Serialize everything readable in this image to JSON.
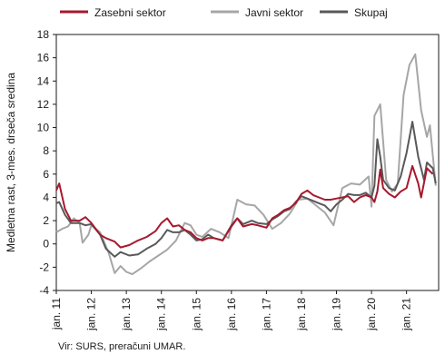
{
  "chart_data": {
    "type": "line",
    "ylabel": "Medletna rast, 3-mes. drseča sredina",
    "ylim": [
      -4,
      18
    ],
    "yticks": [
      -4,
      -2,
      0,
      2,
      4,
      6,
      8,
      10,
      12,
      14,
      16,
      18
    ],
    "xlim": [
      "2011-01",
      "2021-12"
    ],
    "xticks": [
      {
        "label": "jan. 11",
        "at": "2011-01"
      },
      {
        "label": "jan. 12",
        "at": "2012-01"
      },
      {
        "label": "jan. 13",
        "at": "2013-01"
      },
      {
        "label": "jan. 14",
        "at": "2014-01"
      },
      {
        "label": "jan. 15",
        "at": "2015-01"
      },
      {
        "label": "jan. 16",
        "at": "2016-01"
      },
      {
        "label": "jan. 17",
        "at": "2017-01"
      },
      {
        "label": "jan. 18",
        "at": "2018-01"
      },
      {
        "label": "jan. 19",
        "at": "2019-01"
      },
      {
        "label": "jan. 20",
        "at": "2020-01"
      },
      {
        "label": "jan. 21",
        "at": "2021-01"
      }
    ],
    "grid": false,
    "legend_position": "top",
    "series": [
      {
        "name": "Zasebni sektor",
        "color": "#a6192e",
        "points": [
          [
            "2011-01",
            4.6
          ],
          [
            "2011-02",
            5.2
          ],
          [
            "2011-04",
            3.0
          ],
          [
            "2011-06",
            2.0
          ],
          [
            "2011-09",
            2.0
          ],
          [
            "2011-11",
            2.3
          ],
          [
            "2012-01",
            1.8
          ],
          [
            "2012-04",
            0.8
          ],
          [
            "2012-06",
            0.5
          ],
          [
            "2012-09",
            0.2
          ],
          [
            "2012-11",
            -0.3
          ],
          [
            "2013-02",
            -0.1
          ],
          [
            "2013-05",
            0.3
          ],
          [
            "2013-08",
            0.6
          ],
          [
            "2013-11",
            1.1
          ],
          [
            "2014-01",
            1.8
          ],
          [
            "2014-03",
            2.2
          ],
          [
            "2014-05",
            1.5
          ],
          [
            "2014-07",
            1.6
          ],
          [
            "2014-09",
            1.2
          ],
          [
            "2014-11",
            1.0
          ],
          [
            "2015-01",
            0.5
          ],
          [
            "2015-03",
            0.3
          ],
          [
            "2015-05",
            0.5
          ],
          [
            "2015-07",
            0.5
          ],
          [
            "2015-10",
            0.3
          ],
          [
            "2016-01",
            1.5
          ],
          [
            "2016-03",
            2.2
          ],
          [
            "2016-05",
            1.5
          ],
          [
            "2016-08",
            1.7
          ],
          [
            "2016-10",
            1.6
          ],
          [
            "2017-01",
            1.4
          ],
          [
            "2017-03",
            2.2
          ],
          [
            "2017-05",
            2.5
          ],
          [
            "2017-07",
            2.9
          ],
          [
            "2017-09",
            3.1
          ],
          [
            "2017-11",
            3.5
          ],
          [
            "2018-01",
            4.3
          ],
          [
            "2018-03",
            4.6
          ],
          [
            "2018-05",
            4.2
          ],
          [
            "2018-07",
            4.0
          ],
          [
            "2018-09",
            3.8
          ],
          [
            "2018-11",
            3.8
          ],
          [
            "2019-01",
            3.9
          ],
          [
            "2019-03",
            4.0
          ],
          [
            "2019-05",
            4.1
          ],
          [
            "2019-07",
            3.6
          ],
          [
            "2019-09",
            4.0
          ],
          [
            "2019-11",
            4.2
          ],
          [
            "2020-01",
            4.0
          ],
          [
            "2020-02",
            3.6
          ],
          [
            "2020-03",
            4.5
          ],
          [
            "2020-04",
            6.4
          ],
          [
            "2020-05",
            4.8
          ],
          [
            "2020-07",
            4.3
          ],
          [
            "2020-09",
            4.0
          ],
          [
            "2020-11",
            4.5
          ],
          [
            "2021-01",
            4.8
          ],
          [
            "2021-03",
            6.7
          ],
          [
            "2021-05",
            5.2
          ],
          [
            "2021-06",
            4.0
          ],
          [
            "2021-08",
            6.5
          ],
          [
            "2021-10",
            6.0
          ]
        ]
      },
      {
        "name": "Javni sektor",
        "color": "#a6a6a6",
        "points": [
          [
            "2011-01",
            1.0
          ],
          [
            "2011-03",
            1.3
          ],
          [
            "2011-05",
            1.5
          ],
          [
            "2011-07",
            2.2
          ],
          [
            "2011-09",
            1.8
          ],
          [
            "2011-10",
            0.1
          ],
          [
            "2011-12",
            0.8
          ],
          [
            "2012-01",
            1.6
          ],
          [
            "2012-04",
            1.0
          ],
          [
            "2012-07",
            -0.8
          ],
          [
            "2012-09",
            -2.5
          ],
          [
            "2012-11",
            -1.9
          ],
          [
            "2013-01",
            -2.4
          ],
          [
            "2013-03",
            -2.6
          ],
          [
            "2013-06",
            -2.1
          ],
          [
            "2013-09",
            -1.5
          ],
          [
            "2013-12",
            -1.0
          ],
          [
            "2014-03",
            -0.5
          ],
          [
            "2014-06",
            0.3
          ],
          [
            "2014-09",
            1.8
          ],
          [
            "2014-11",
            1.6
          ],
          [
            "2015-01",
            0.8
          ],
          [
            "2015-03",
            0.6
          ],
          [
            "2015-06",
            1.3
          ],
          [
            "2015-09",
            1.0
          ],
          [
            "2015-12",
            0.5
          ],
          [
            "2016-03",
            3.8
          ],
          [
            "2016-06",
            3.4
          ],
          [
            "2016-09",
            3.3
          ],
          [
            "2016-12",
            2.5
          ],
          [
            "2017-03",
            1.3
          ],
          [
            "2017-06",
            1.8
          ],
          [
            "2017-09",
            2.6
          ],
          [
            "2017-12",
            3.8
          ],
          [
            "2018-03",
            3.9
          ],
          [
            "2018-06",
            3.3
          ],
          [
            "2018-09",
            2.7
          ],
          [
            "2018-12",
            1.6
          ],
          [
            "2019-03",
            4.8
          ],
          [
            "2019-06",
            5.2
          ],
          [
            "2019-09",
            5.1
          ],
          [
            "2019-12",
            5.8
          ],
          [
            "2020-01",
            3.2
          ],
          [
            "2020-02",
            11.0
          ],
          [
            "2020-04",
            12.0
          ],
          [
            "2020-06",
            5.5
          ],
          [
            "2020-08",
            4.5
          ],
          [
            "2020-10",
            5.2
          ],
          [
            "2020-12",
            12.8
          ],
          [
            "2021-02",
            15.4
          ],
          [
            "2021-04",
            16.3
          ],
          [
            "2021-06",
            11.5
          ],
          [
            "2021-08",
            9.2
          ],
          [
            "2021-09",
            10.2
          ],
          [
            "2021-11",
            5.0
          ]
        ]
      },
      {
        "name": "Skupaj",
        "color": "#595959",
        "points": [
          [
            "2011-01",
            3.5
          ],
          [
            "2011-02",
            3.6
          ],
          [
            "2011-04",
            2.5
          ],
          [
            "2011-06",
            1.8
          ],
          [
            "2011-09",
            1.8
          ],
          [
            "2011-11",
            1.6
          ],
          [
            "2012-01",
            1.7
          ],
          [
            "2012-04",
            0.8
          ],
          [
            "2012-06",
            -0.4
          ],
          [
            "2012-09",
            -1.1
          ],
          [
            "2012-11",
            -0.7
          ],
          [
            "2013-02",
            -1.0
          ],
          [
            "2013-05",
            -0.9
          ],
          [
            "2013-08",
            -0.4
          ],
          [
            "2013-11",
            0.0
          ],
          [
            "2014-01",
            0.5
          ],
          [
            "2014-03",
            1.2
          ],
          [
            "2014-05",
            1.0
          ],
          [
            "2014-07",
            1.0
          ],
          [
            "2014-09",
            1.2
          ],
          [
            "2014-11",
            0.8
          ],
          [
            "2015-01",
            0.3
          ],
          [
            "2015-03",
            0.4
          ],
          [
            "2015-05",
            0.8
          ],
          [
            "2015-07",
            0.5
          ],
          [
            "2015-10",
            0.3
          ],
          [
            "2016-01",
            1.6
          ],
          [
            "2016-03",
            2.2
          ],
          [
            "2016-05",
            1.7
          ],
          [
            "2016-08",
            2.0
          ],
          [
            "2016-10",
            1.8
          ],
          [
            "2017-01",
            1.7
          ],
          [
            "2017-03",
            2.1
          ],
          [
            "2017-05",
            2.4
          ],
          [
            "2017-07",
            2.8
          ],
          [
            "2017-09",
            3.0
          ],
          [
            "2017-11",
            3.6
          ],
          [
            "2018-01",
            4.1
          ],
          [
            "2018-03",
            3.9
          ],
          [
            "2018-05",
            3.7
          ],
          [
            "2018-07",
            3.5
          ],
          [
            "2018-09",
            3.3
          ],
          [
            "2018-11",
            2.8
          ],
          [
            "2019-01",
            3.4
          ],
          [
            "2019-03",
            3.8
          ],
          [
            "2019-05",
            4.3
          ],
          [
            "2019-07",
            4.2
          ],
          [
            "2019-09",
            4.2
          ],
          [
            "2019-11",
            4.4
          ],
          [
            "2020-01",
            4.0
          ],
          [
            "2020-02",
            5.0
          ],
          [
            "2020-03",
            9.0
          ],
          [
            "2020-04",
            7.5
          ],
          [
            "2020-05",
            5.5
          ],
          [
            "2020-07",
            4.8
          ],
          [
            "2020-09",
            4.6
          ],
          [
            "2020-11",
            5.8
          ],
          [
            "2021-01",
            7.8
          ],
          [
            "2021-03",
            10.5
          ],
          [
            "2021-05",
            7.5
          ],
          [
            "2021-07",
            5.5
          ],
          [
            "2021-08",
            7.0
          ],
          [
            "2021-10",
            6.5
          ],
          [
            "2021-11",
            5.2
          ]
        ]
      }
    ]
  },
  "footer": {
    "source": "Vir: SURS, preračuni UMAR."
  }
}
